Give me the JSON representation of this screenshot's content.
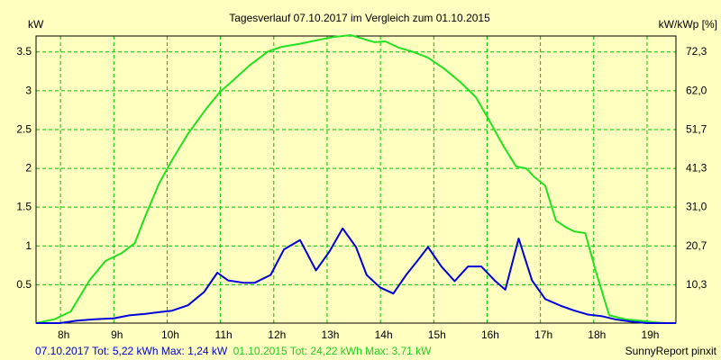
{
  "chart_data": {
    "type": "line",
    "title": "Tagesverlauf 07.10.2017 im Vergleich zum 01.10.2015",
    "ylabel_left": "kW",
    "ylabel_right": "kW/kWp [%]",
    "x_ticks": [
      8,
      9,
      10,
      11,
      12,
      13,
      14,
      15,
      16,
      17,
      18,
      19
    ],
    "x_tick_labels": [
      "8h",
      "9h",
      "10h",
      "11h",
      "12h",
      "13h",
      "14h",
      "15h",
      "16h",
      "17h",
      "18h",
      "19h"
    ],
    "xlim": [
      7.55,
      19.55
    ],
    "y_ticks": [
      0.5,
      1,
      1.5,
      2,
      2.5,
      3,
      3.5
    ],
    "y_tick_labels": [
      "0.5",
      "1",
      "1.5",
      "2",
      "2.5",
      "3",
      "3.5"
    ],
    "ylim": [
      0,
      3.7
    ],
    "y2_ticks": [
      0.5,
      1,
      1.5,
      2,
      2.5,
      3,
      3.5
    ],
    "y2_tick_labels": [
      "10,3",
      "20,7",
      "31,0",
      "41,3",
      "51,7",
      "62,0",
      "72,3"
    ],
    "grid": true,
    "background": "#ffffbf",
    "grid_color": "#00c000",
    "series": [
      {
        "name": "01.10.2015",
        "color": "#22e022",
        "x": [
          7.55,
          7.9,
          8.2,
          8.55,
          8.85,
          9.15,
          9.4,
          9.6,
          9.85,
          10.1,
          10.4,
          10.75,
          11.0,
          11.25,
          11.55,
          11.9,
          12.15,
          12.5,
          12.85,
          13.15,
          13.45,
          13.65,
          13.9,
          14.1,
          14.35,
          14.6,
          14.9,
          15.2,
          15.5,
          15.8,
          16.0,
          16.3,
          16.55,
          16.75,
          16.9,
          17.1,
          17.3,
          17.5,
          17.65,
          17.85,
          18.05,
          18.3,
          18.6,
          18.9,
          19.15,
          19.35,
          19.55
        ],
        "values": [
          0,
          0.05,
          0.15,
          0.55,
          0.8,
          0.9,
          1.03,
          1.38,
          1.79,
          2.1,
          2.44,
          2.77,
          2.98,
          3.13,
          3.32,
          3.5,
          3.56,
          3.6,
          3.65,
          3.69,
          3.71,
          3.67,
          3.62,
          3.63,
          3.55,
          3.5,
          3.42,
          3.28,
          3.11,
          2.91,
          2.67,
          2.3,
          2.02,
          1.99,
          1.88,
          1.77,
          1.32,
          1.23,
          1.18,
          1.16,
          0.66,
          0.1,
          0.05,
          0.03,
          0.01,
          0,
          0
        ]
      },
      {
        "name": "07.10.2017",
        "color": "#0000dd",
        "x": [
          7.55,
          8.0,
          8.3,
          8.65,
          9.0,
          9.3,
          9.6,
          9.85,
          10.1,
          10.4,
          10.7,
          10.95,
          11.15,
          11.45,
          11.65,
          11.95,
          12.2,
          12.5,
          12.8,
          13.05,
          13.3,
          13.55,
          13.75,
          14.0,
          14.25,
          14.5,
          14.7,
          14.9,
          15.15,
          15.4,
          15.65,
          15.9,
          16.15,
          16.35,
          16.6,
          16.85,
          17.1,
          17.4,
          17.65,
          17.9,
          18.15,
          18.4,
          18.7,
          19.0,
          19.3,
          19.55
        ],
        "values": [
          0,
          0,
          0.03,
          0.05,
          0.06,
          0.1,
          0.12,
          0.14,
          0.16,
          0.23,
          0.4,
          0.65,
          0.55,
          0.52,
          0.52,
          0.62,
          0.95,
          1.07,
          0.68,
          0.92,
          1.22,
          0.98,
          0.62,
          0.46,
          0.38,
          0.63,
          0.8,
          0.98,
          0.73,
          0.54,
          0.73,
          0.73,
          0.55,
          0.43,
          1.09,
          0.55,
          0.31,
          0.22,
          0.16,
          0.11,
          0.09,
          0.05,
          0.02,
          0,
          0,
          0
        ]
      }
    ]
  },
  "footer": {
    "blue_text": "07.10.2017 Tot: 5,22 kWh Max: 1,24 kW",
    "green_text": "01.10.2015 Tot: 24,22 kWh Max: 3,71 kW",
    "credit": "SunnyReport pinxit"
  }
}
